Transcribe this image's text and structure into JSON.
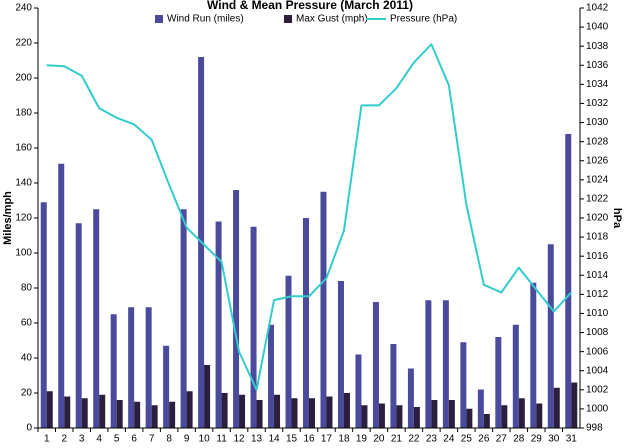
{
  "chart_data": {
    "type": "bar_line",
    "title": "Wind & Mean Pressure (March 2011)",
    "ylabel": "Miles/mph",
    "y2label": "hPa",
    "categories": [
      "1",
      "2",
      "3",
      "4",
      "5",
      "6",
      "7",
      "8",
      "9",
      "10",
      "11",
      "12",
      "13",
      "14",
      "15",
      "16",
      "17",
      "18",
      "19",
      "20",
      "21",
      "22",
      "23",
      "24",
      "25",
      "26",
      "27",
      "28",
      "29",
      "30",
      "31"
    ],
    "series": [
      {
        "name": "Wind Run (miles)",
        "color": "#4b4b9e",
        "kind": "bar",
        "values": [
          129,
          151,
          117,
          125,
          65,
          69,
          69,
          47,
          125,
          212,
          118,
          136,
          115,
          59,
          87,
          120,
          135,
          84,
          42,
          72,
          48,
          34,
          73,
          73,
          49,
          22,
          52,
          59,
          83,
          105,
          168
        ]
      },
      {
        "name": "Max Gust (mph)",
        "color": "#2b1f3d",
        "kind": "bar",
        "values": [
          21,
          18,
          17,
          19,
          16,
          15,
          13,
          15,
          21,
          36,
          20,
          19,
          16,
          19,
          17,
          17,
          18,
          20,
          13,
          14,
          13,
          12,
          16,
          16,
          11,
          8,
          13,
          17,
          14,
          23,
          26
        ]
      },
      {
        "name": "Pressure (hPa)",
        "color": "#33cccc",
        "kind": "line",
        "axis": "y2",
        "values": [
          1036.0,
          1035.9,
          1034.9,
          1031.5,
          1030.5,
          1029.8,
          1028.2,
          1023.5,
          1019.0,
          1017.2,
          1015.4,
          1006.0,
          1002.0,
          1011.4,
          1011.8,
          1011.8,
          1013.7,
          1018.7,
          1031.8,
          1031.8,
          1033.6,
          1036.3,
          1038.2,
          1033.9,
          1021.4,
          1013.0,
          1012.2,
          1014.8,
          1012.5,
          1010.2,
          1012.2
        ]
      }
    ],
    "ylim": [
      0,
      240
    ],
    "yticks": [
      0,
      20,
      40,
      60,
      80,
      100,
      120,
      140,
      160,
      180,
      200,
      220,
      240
    ],
    "y2lim": [
      998,
      1042
    ],
    "y2ticks": [
      998,
      1000,
      1002,
      1004,
      1006,
      1008,
      1010,
      1012,
      1014,
      1016,
      1018,
      1020,
      1022,
      1024,
      1026,
      1028,
      1030,
      1032,
      1034,
      1036,
      1038,
      1040,
      1042
    ],
    "legend": "top"
  }
}
